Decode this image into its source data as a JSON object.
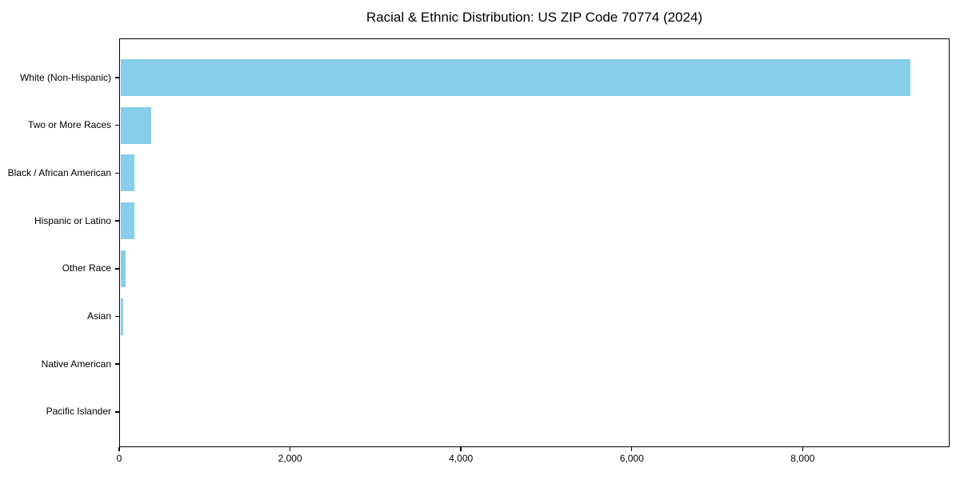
{
  "page": {
    "background_color": "#ffffff",
    "text_color": "#000000",
    "axis_color": "#000000"
  },
  "chart_data": {
    "type": "bar",
    "orientation": "horizontal",
    "title": "Racial & Ethnic Distribution: US ZIP Code 70774 (2024)",
    "xlabel": "",
    "ylabel": "",
    "categories": [
      "White (Non-Hispanic)",
      "Two or More Races",
      "Black / African American",
      "Hispanic or Latino",
      "Other Race",
      "Asian",
      "Native American",
      "Pacific Islander"
    ],
    "values": [
      9250,
      356,
      165,
      163,
      62,
      33,
      0,
      0
    ],
    "bar_color": "#87CEEB",
    "xlim": [
      0,
      9720
    ],
    "xticks": [
      {
        "value": 0,
        "label": "0"
      },
      {
        "value": 2000,
        "label": "2,000"
      },
      {
        "value": 4000,
        "label": "4,000"
      },
      {
        "value": 6000,
        "label": "6,000"
      },
      {
        "value": 8000,
        "label": "8,000"
      }
    ],
    "grid": false,
    "legend": null
  }
}
